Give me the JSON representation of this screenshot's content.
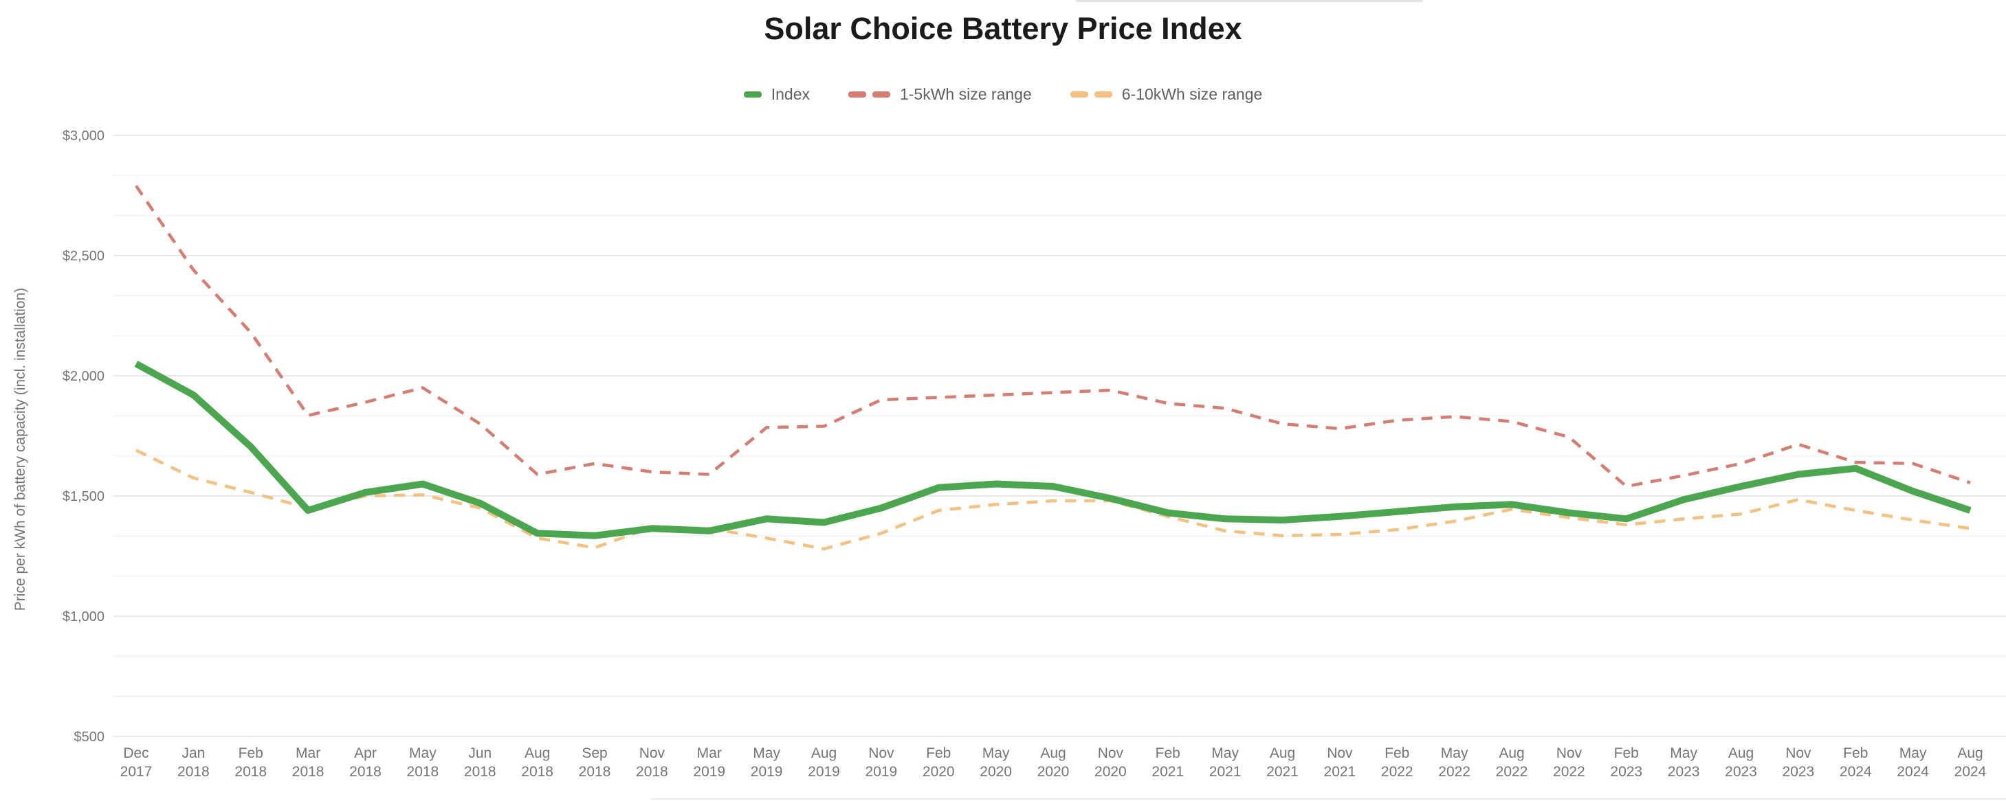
{
  "chart": {
    "title": "Solar Choice Battery Price Index",
    "y_axis_title": "Price per kWh of battery capacity (incl. installation)",
    "legend": [
      {
        "label": "Index",
        "color": "#4ca64f",
        "style": "solid"
      },
      {
        "label": "1-5kWh size range",
        "color": "#d47d72",
        "style": "dashed"
      },
      {
        "label": "6-10kWh size range",
        "color": "#f3c181",
        "style": "dashed"
      }
    ]
  },
  "chart_data": {
    "type": "line",
    "title": "Solar Choice Battery Price Index",
    "xlabel": "",
    "ylabel": "Price per kWh of battery capacity (incl. installation)",
    "ylim": [
      500,
      3000
    ],
    "grid": {
      "major_color": "#e7e7e7",
      "minor_color": "#f4f4f4",
      "minor_divisions": 3
    },
    "legend_position": "top",
    "y_ticks": [
      {
        "value": 500,
        "label": "$500"
      },
      {
        "value": 1000,
        "label": "$1,000"
      },
      {
        "value": 1500,
        "label": "$1,500"
      },
      {
        "value": 2000,
        "label": "$2,000"
      },
      {
        "value": 2500,
        "label": "$2,500"
      },
      {
        "value": 3000,
        "label": "$3,000"
      }
    ],
    "categories": [
      "Dec 2017",
      "Jan 2018",
      "Feb 2018",
      "Mar 2018",
      "Apr 2018",
      "May 2018",
      "Jun 2018",
      "Aug 2018",
      "Sep 2018",
      "Nov 2018",
      "Mar 2019",
      "May 2019",
      "Aug 2019",
      "Nov 2019",
      "Feb 2020",
      "May 2020",
      "Aug 2020",
      "Nov 2020",
      "Feb 2021",
      "May 2021",
      "Aug 2021",
      "Nov 2021",
      "Feb 2022",
      "May 2022",
      "Aug 2022",
      "Nov 2022",
      "Feb 2023",
      "May 2023",
      "Aug 2023",
      "Nov 2023",
      "Feb 2024",
      "May 2024",
      "Aug 2024"
    ],
    "series": [
      {
        "name": "Index",
        "color": "#4ca64f",
        "dash": null,
        "stroke_width": 10,
        "values": [
          2050,
          1920,
          1705,
          1440,
          1515,
          1550,
          1470,
          1345,
          1335,
          1365,
          1355,
          1405,
          1390,
          1450,
          1535,
          1550,
          1540,
          1490,
          1430,
          1405,
          1400,
          1415,
          1435,
          1455,
          1465,
          1430,
          1405,
          1485,
          1540,
          1590,
          1615,
          1520,
          1440
        ]
      },
      {
        "name": "1-5kWh size range",
        "color": "#d47d72",
        "dash": "16,12",
        "stroke_width": 4.5,
        "values": [
          2790,
          2440,
          2180,
          1835,
          1890,
          1950,
          1800,
          1590,
          1635,
          1600,
          1590,
          1785,
          1790,
          1900,
          1910,
          1920,
          1930,
          1940,
          1885,
          1865,
          1800,
          1780,
          1815,
          1830,
          1810,
          1745,
          1540,
          1585,
          1635,
          1715,
          1640,
          1635,
          1555
        ]
      },
      {
        "name": "6-10kWh size range",
        "color": "#f3c181",
        "dash": "16,12",
        "stroke_width": 4.5,
        "values": [
          1690,
          1575,
          1515,
          1450,
          1500,
          1505,
          1450,
          1325,
          1285,
          1370,
          1365,
          1325,
          1280,
          1345,
          1440,
          1465,
          1480,
          1480,
          1415,
          1355,
          1335,
          1340,
          1360,
          1395,
          1445,
          1410,
          1380,
          1405,
          1425,
          1485,
          1440,
          1400,
          1365
        ]
      }
    ]
  }
}
